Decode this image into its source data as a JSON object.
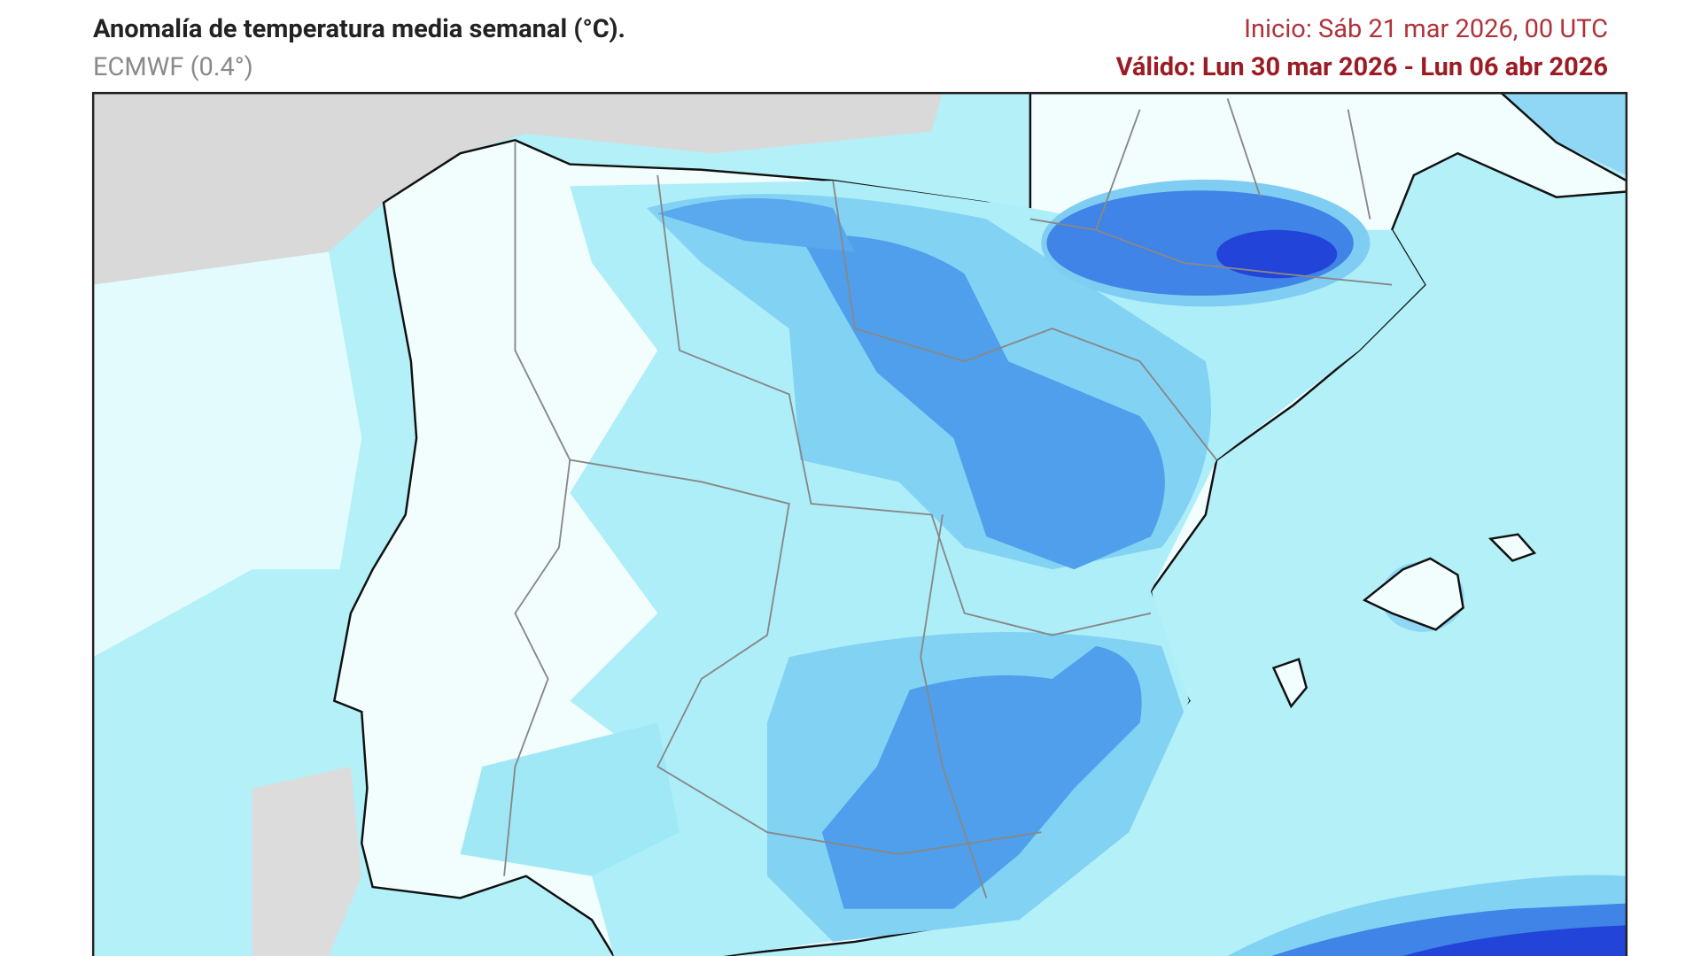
{
  "header": {
    "title": "Anomalía de temperatura media semanal (°C).",
    "subtitle": "ECMWF (0.4°)",
    "start": "Inicio: Sáb 21 mar 2026, 00 UTC",
    "valid": "Válido: Lun 30 mar 2026 - Lun 06 abr 2026"
  }
}
